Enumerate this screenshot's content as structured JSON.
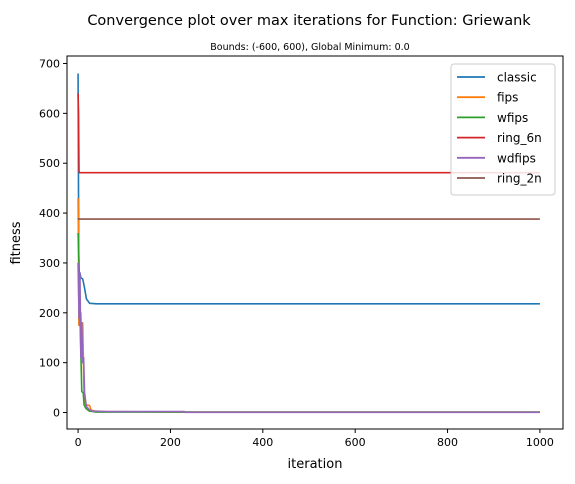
{
  "chart_data": {
    "type": "line",
    "title": "Convergence plot over max iterations for Function: Griewank",
    "subtitle": "Bounds: (-600, 600), Global Minimum: 0.0",
    "xlabel": "iteration",
    "ylabel": "fitness",
    "xlim": [
      -24,
      1050
    ],
    "ylim": [
      -33,
      715
    ],
    "xticks": [
      0,
      200,
      400,
      600,
      800,
      1000
    ],
    "yticks": [
      0,
      100,
      200,
      300,
      400,
      500,
      600,
      700
    ],
    "grid": false,
    "legend_position": "top-right",
    "series": [
      {
        "name": "classic",
        "color": "#1f77b4",
        "points": [
          [
            0,
            680
          ],
          [
            1,
            420
          ],
          [
            2,
            175
          ],
          [
            3,
            240
          ],
          [
            4,
            280
          ],
          [
            6,
            270
          ],
          [
            10,
            268
          ],
          [
            14,
            250
          ],
          [
            18,
            228
          ],
          [
            25,
            219
          ],
          [
            40,
            218
          ],
          [
            200,
            218
          ],
          [
            1000,
            218
          ]
        ]
      },
      {
        "name": "fips",
        "color": "#ff7f0e",
        "points": [
          [
            0,
            430
          ],
          [
            2,
            175
          ],
          [
            4,
            180
          ],
          [
            6,
            200
          ],
          [
            8,
            130
          ],
          [
            10,
            180
          ],
          [
            13,
            30
          ],
          [
            16,
            15
          ],
          [
            20,
            15
          ],
          [
            25,
            14
          ],
          [
            28,
            5
          ],
          [
            35,
            3
          ],
          [
            60,
            2
          ],
          [
            200,
            1
          ],
          [
            1000,
            1
          ]
        ]
      },
      {
        "name": "wfips",
        "color": "#2ca02c",
        "points": [
          [
            0,
            360
          ],
          [
            2,
            300
          ],
          [
            4,
            200
          ],
          [
            6,
            120
          ],
          [
            8,
            42
          ],
          [
            11,
            40
          ],
          [
            13,
            15
          ],
          [
            17,
            8
          ],
          [
            24,
            3
          ],
          [
            40,
            1
          ],
          [
            200,
            1
          ],
          [
            1000,
            1
          ]
        ]
      },
      {
        "name": "ring_6n",
        "color": "#d62728",
        "points": [
          [
            0,
            640
          ],
          [
            1,
            600
          ],
          [
            2,
            484
          ],
          [
            3,
            481
          ],
          [
            100,
            481
          ],
          [
            1000,
            481
          ]
        ]
      },
      {
        "name": "wdfips",
        "color": "#9467bd",
        "points": [
          [
            0,
            300
          ],
          [
            2,
            190
          ],
          [
            4,
            280
          ],
          [
            6,
            110
          ],
          [
            8,
            180
          ],
          [
            10,
            100
          ],
          [
            12,
            110
          ],
          [
            14,
            40
          ],
          [
            18,
            12
          ],
          [
            24,
            6
          ],
          [
            30,
            3
          ],
          [
            60,
            2
          ],
          [
            230,
            2
          ],
          [
            232,
            0.5
          ],
          [
            1000,
            0.5
          ]
        ]
      },
      {
        "name": "ring_2n",
        "color": "#8c564b",
        "points": [
          [
            0,
            390
          ],
          [
            1,
            388
          ],
          [
            100,
            388
          ],
          [
            1000,
            388
          ]
        ]
      }
    ]
  }
}
